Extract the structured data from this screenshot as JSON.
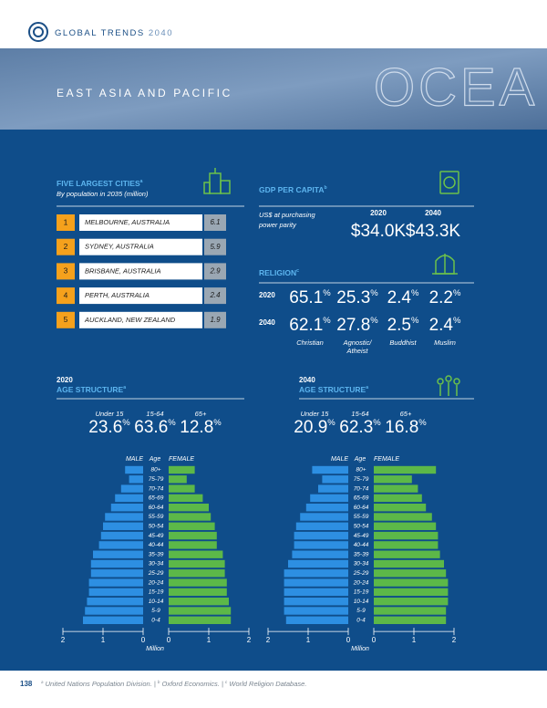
{
  "header": {
    "logo_text": "GLOBAL TRENDS",
    "logo_year": "2040"
  },
  "banner": {
    "title": "EAST ASIA AND PACIFIC",
    "big_text": "OCEA"
  },
  "cities": {
    "title": "FIVE LARGEST CITIES",
    "title_note": "a",
    "subtitle": "By population in 2035 (million)",
    "rows": [
      {
        "rank": "1",
        "name": "MELBOURNE, AUSTRALIA",
        "value": "6.1"
      },
      {
        "rank": "2",
        "name": "SYDNEY, AUSTRALIA",
        "value": "5.9"
      },
      {
        "rank": "3",
        "name": "BRISBANE, AUSTRALIA",
        "value": "2.9"
      },
      {
        "rank": "4",
        "name": "PERTH, AUSTRALIA",
        "value": "2.4"
      },
      {
        "rank": "5",
        "name": "AUCKLAND, NEW ZEALAND",
        "value": "1.9"
      }
    ]
  },
  "gdp": {
    "title": "GDP PER CAPITA",
    "title_note": "b",
    "subtitle": [
      "US$ at purchasing",
      "power parity"
    ],
    "columns": [
      {
        "year": "2020",
        "value": "$34.0K"
      },
      {
        "year": "2040",
        "value": "$43.3K"
      }
    ]
  },
  "religion": {
    "title": "RELIGION",
    "title_note": "c",
    "groups": [
      [
        "Christian"
      ],
      [
        "Agnostic/",
        "Atheist"
      ],
      [
        "Buddhist"
      ],
      [
        "Muslim"
      ]
    ],
    "rows": [
      {
        "year": "2020",
        "values": [
          {
            "value": "65.1",
            "unit": "%"
          },
          {
            "value": "25.3",
            "unit": "%"
          },
          {
            "value": "2.4",
            "unit": "%"
          },
          {
            "value": "2.2",
            "unit": "%"
          }
        ]
      },
      {
        "year": "2040",
        "values": [
          {
            "value": "62.1",
            "unit": "%"
          },
          {
            "value": "27.8",
            "unit": "%"
          },
          {
            "value": "2.5",
            "unit": "%"
          },
          {
            "value": "2.4",
            "unit": "%"
          }
        ]
      }
    ]
  },
  "age_structure": [
    {
      "year": "2020",
      "title": "AGE STRUCTURE",
      "title_note": "a",
      "stats": [
        {
          "label": "Under 15",
          "value": "23.6",
          "unit": "%"
        },
        {
          "label": "15-64",
          "value": "63.6",
          "unit": "%"
        },
        {
          "label": "65+",
          "value": "12.8",
          "unit": "%"
        }
      ],
      "pyramid": {
        "male_label": "MALE",
        "age_label": "Age",
        "female_label": "FEMALE",
        "age_groups": [
          "80+",
          "75-79",
          "70-74",
          "65-69",
          "60-64",
          "55-59",
          "50-54",
          "45-49",
          "40-44",
          "35-39",
          "30-34",
          "25-29",
          "20-24",
          "15-19",
          "10-14",
          "5-9",
          "0-4"
        ],
        "male": [
          0.45,
          0.35,
          0.55,
          0.7,
          0.8,
          0.95,
          1.0,
          1.05,
          1.1,
          1.25,
          1.3,
          1.3,
          1.35,
          1.35,
          1.4,
          1.45,
          1.5
        ],
        "female": [
          0.65,
          0.45,
          0.65,
          0.85,
          1.0,
          1.05,
          1.15,
          1.2,
          1.2,
          1.35,
          1.4,
          1.4,
          1.45,
          1.45,
          1.5,
          1.55,
          1.55
        ],
        "xlim": [
          0,
          2
        ],
        "male_ticks": [
          2,
          1,
          0
        ],
        "female_ticks": [
          0,
          1,
          2
        ],
        "xlabel": "Million"
      }
    },
    {
      "year": "2040",
      "title": "AGE STRUCTURE",
      "title_note": "a",
      "stats": [
        {
          "label": "Under 15",
          "value": "20.9",
          "unit": "%"
        },
        {
          "label": "15-64",
          "value": "62.3",
          "unit": "%"
        },
        {
          "label": "65+",
          "value": "16.8",
          "unit": "%"
        }
      ],
      "pyramid": {
        "male_label": "MALE",
        "age_label": "Age",
        "female_label": "FEMALE",
        "age_groups": [
          "80+",
          "75-79",
          "70-74",
          "65-69",
          "60-64",
          "55-59",
          "50-54",
          "45-49",
          "40-44",
          "35-39",
          "30-34",
          "25-29",
          "20-24",
          "15-19",
          "10-14",
          "5-9",
          "0-4"
        ],
        "male": [
          0.9,
          0.65,
          0.75,
          0.95,
          1.05,
          1.2,
          1.3,
          1.35,
          1.35,
          1.4,
          1.5,
          1.6,
          1.6,
          1.6,
          1.6,
          1.6,
          1.55
        ],
        "female": [
          1.55,
          0.95,
          1.1,
          1.2,
          1.3,
          1.45,
          1.55,
          1.6,
          1.6,
          1.65,
          1.75,
          1.8,
          1.85,
          1.85,
          1.85,
          1.8,
          1.8
        ],
        "xlim": [
          0,
          2
        ],
        "male_ticks": [
          2,
          1,
          0
        ],
        "female_ticks": [
          0,
          1,
          2
        ],
        "xlabel": "Million"
      }
    }
  ],
  "footer": {
    "page": "138",
    "separator": "|",
    "notes": [
      {
        "mark": "a",
        "text": "United Nations Population Division."
      },
      {
        "mark": "b",
        "text": "Oxford Economics."
      },
      {
        "mark": "c",
        "text": "World Religion Database."
      }
    ]
  }
}
